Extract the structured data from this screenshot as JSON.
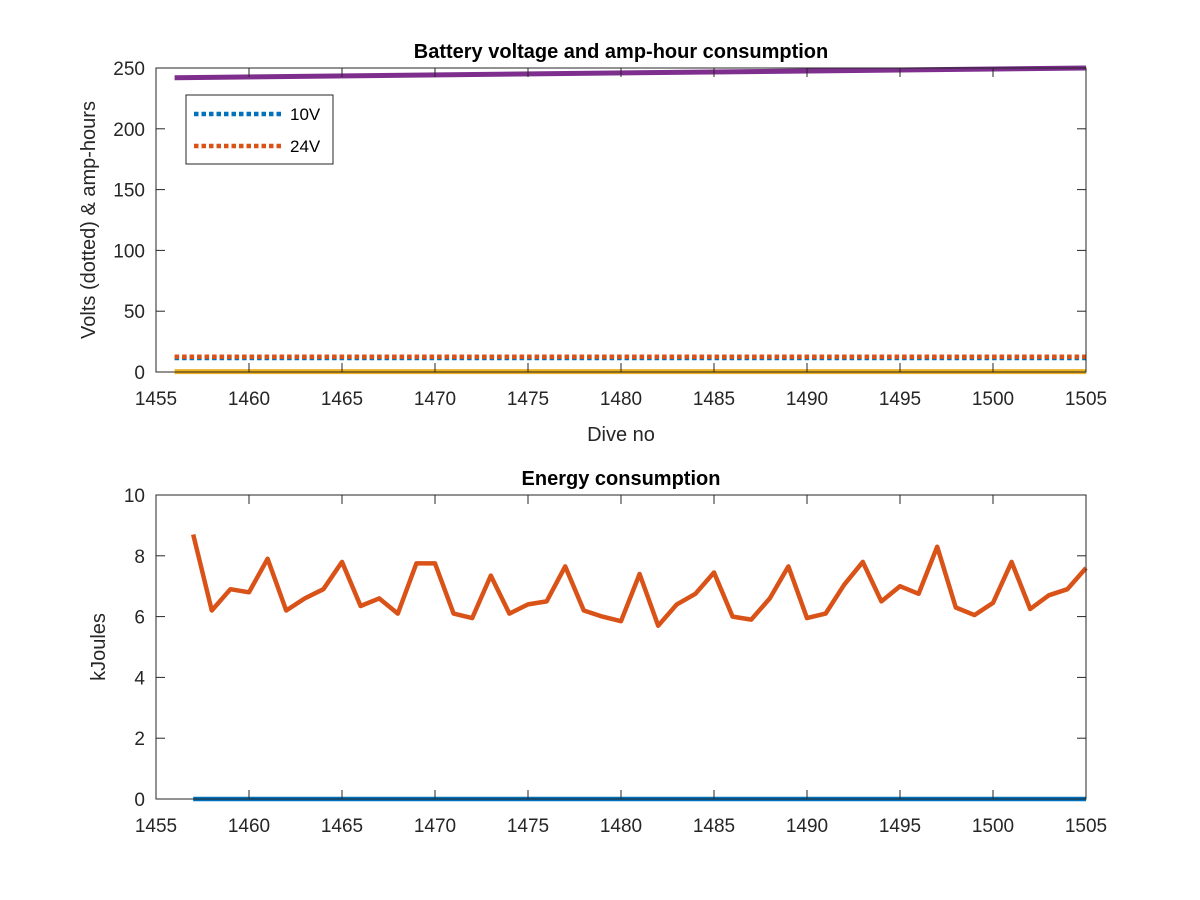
{
  "chart_data": [
    {
      "type": "line",
      "title": "Battery voltage and amp-hour consumption",
      "xlabel": "Dive no",
      "ylabel": "Volts (dotted) & amp-hours",
      "xlim": [
        1455,
        1505
      ],
      "ylim": [
        0,
        250
      ],
      "xticks": [
        1455,
        1460,
        1465,
        1470,
        1475,
        1480,
        1485,
        1490,
        1495,
        1500,
        1505
      ],
      "yticks": [
        0,
        50,
        100,
        150,
        200,
        250
      ],
      "grid": false,
      "legend_position": "top-left",
      "series": [
        {
          "name": "10V",
          "style": "dotted",
          "color": "#0072BD",
          "x": [
            1456,
            1505
          ],
          "y": [
            11.5,
            11.5
          ]
        },
        {
          "name": "24V",
          "style": "dotted",
          "color": "#D95319",
          "x": [
            1456,
            1505
          ],
          "y": [
            12.5,
            12.5
          ]
        },
        {
          "name": "",
          "style": "solid",
          "color": "#EDB120",
          "x": [
            1456,
            1505
          ],
          "y": [
            0.3,
            0.3
          ]
        },
        {
          "name": "",
          "style": "solid",
          "color": "#7E2F8E",
          "x": [
            1456,
            1505
          ],
          "y": [
            242,
            250
          ]
        }
      ]
    },
    {
      "type": "line",
      "title": "Energy consumption",
      "xlabel": "",
      "ylabel": "kJoules",
      "xlim": [
        1455,
        1505
      ],
      "ylim": [
        0,
        10
      ],
      "xticks": [
        1455,
        1460,
        1465,
        1470,
        1475,
        1480,
        1485,
        1490,
        1495,
        1500,
        1505
      ],
      "yticks": [
        0,
        2,
        4,
        6,
        8,
        10
      ],
      "grid": false,
      "series": [
        {
          "name": "",
          "style": "solid",
          "color": "#0072BD",
          "x": [
            1457,
            1505
          ],
          "y": [
            0,
            0
          ]
        },
        {
          "name": "",
          "style": "solid",
          "color": "#D95319",
          "x": [
            1457,
            1458,
            1459,
            1460,
            1461,
            1462,
            1463,
            1464,
            1465,
            1466,
            1467,
            1468,
            1469,
            1470,
            1471,
            1472,
            1473,
            1474,
            1475,
            1476,
            1477,
            1478,
            1479,
            1480,
            1481,
            1482,
            1483,
            1484,
            1485,
            1486,
            1487,
            1488,
            1489,
            1490,
            1491,
            1492,
            1493,
            1494,
            1495,
            1496,
            1497,
            1498,
            1499,
            1500,
            1501,
            1502,
            1503,
            1504,
            1505
          ],
          "y": [
            8.7,
            6.2,
            6.9,
            6.8,
            7.9,
            6.2,
            6.6,
            6.9,
            7.8,
            6.35,
            6.6,
            6.1,
            7.75,
            7.75,
            6.1,
            5.95,
            7.35,
            6.1,
            6.4,
            6.5,
            7.65,
            6.2,
            6.0,
            5.85,
            7.4,
            5.7,
            6.4,
            6.75,
            7.45,
            6.0,
            5.9,
            6.6,
            7.65,
            5.95,
            6.1,
            7.05,
            7.8,
            6.5,
            7.0,
            6.75,
            8.3,
            6.3,
            6.05,
            6.45,
            7.8,
            6.25,
            6.7,
            6.9,
            7.6
          ]
        }
      ]
    }
  ]
}
